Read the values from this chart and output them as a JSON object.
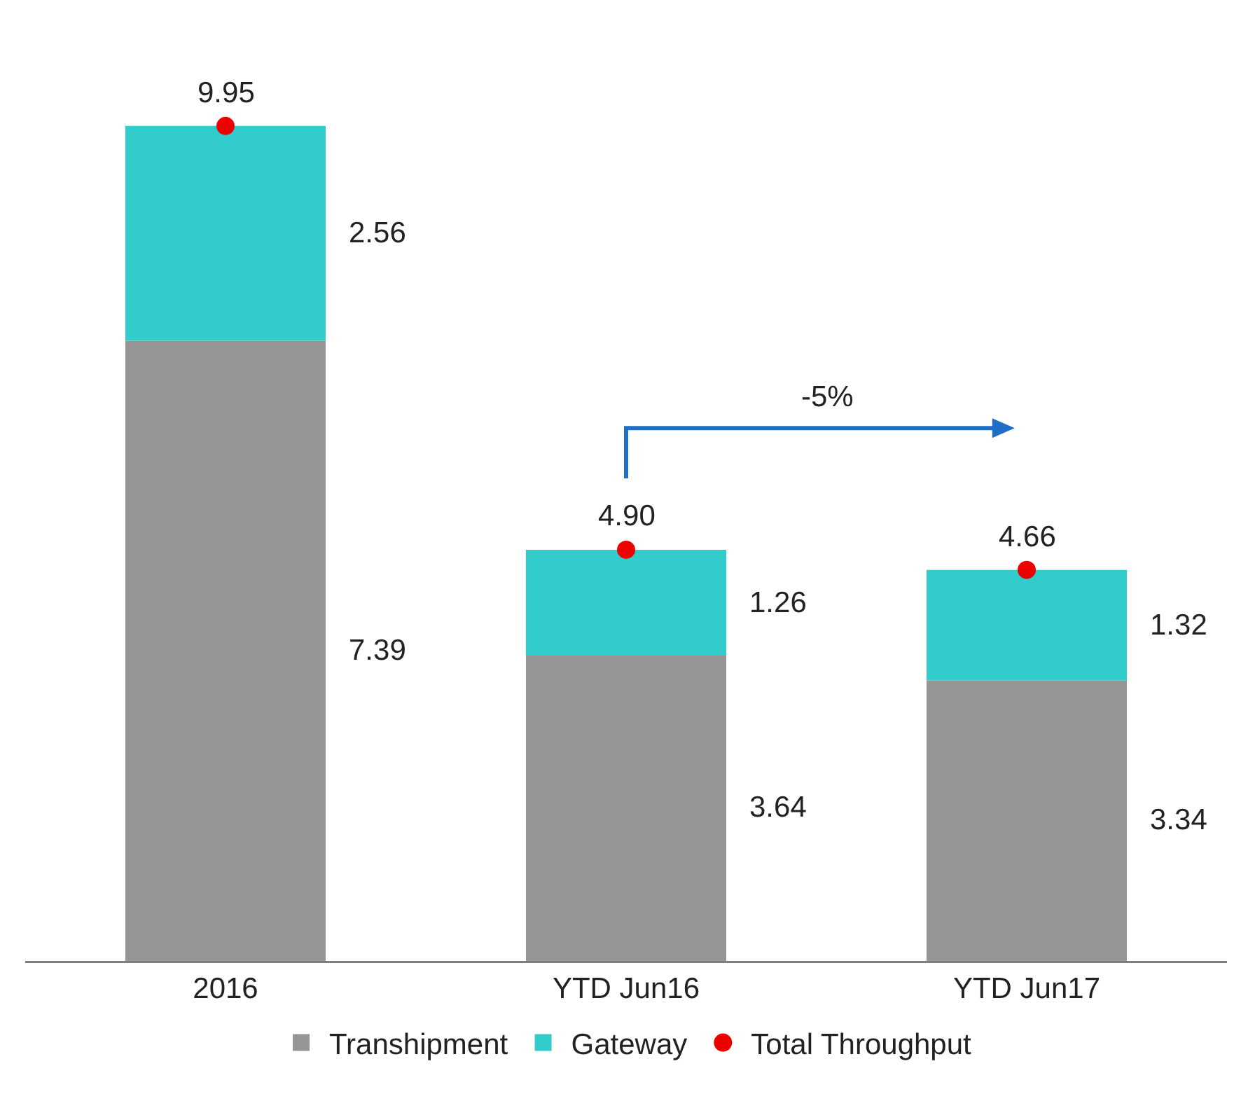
{
  "chart_data": {
    "type": "bar",
    "stacked": true,
    "categories": [
      "2016",
      "YTD Jun16",
      "YTD Jun17"
    ],
    "series": [
      {
        "name": "Transhipment",
        "color": "#959595",
        "values": [
          7.39,
          3.64,
          3.34
        ]
      },
      {
        "name": "Gateway",
        "color": "#33cccc",
        "values": [
          2.56,
          1.26,
          1.32
        ]
      },
      {
        "name": "Total Throughput",
        "type": "scatter",
        "marker": "circle",
        "color": "#ee0000",
        "values": [
          9.95,
          4.9,
          4.66
        ],
        "value_labels": [
          "9.95",
          "4.90",
          "4.66"
        ]
      }
    ],
    "value_labels": [
      [
        "7.39",
        "3.64",
        "3.34"
      ],
      [
        "2.56",
        "1.26",
        "1.32"
      ]
    ],
    "annotations": [
      "-5%"
    ],
    "legend": "bottom",
    "grid": false
  }
}
